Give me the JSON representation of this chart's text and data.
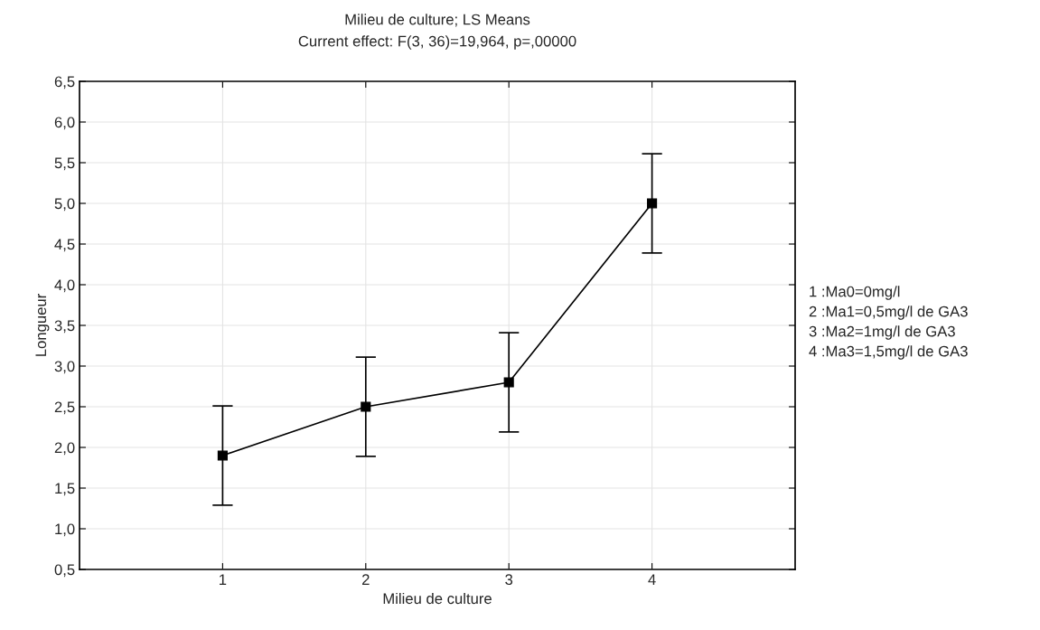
{
  "chart_data": {
    "type": "line",
    "title": "Milieu de culture; LS Means",
    "subtitle": "Current effect: F(3, 36)=19,964, p=,00000",
    "xlabel": "Milieu de culture",
    "ylabel": "Longueur",
    "categories": [
      "1",
      "2",
      "3",
      "4"
    ],
    "series": [
      {
        "color": "#000000",
        "values": [
          1.9,
          2.5,
          2.8,
          5.0
        ],
        "errors": [
          0.61,
          0.61,
          0.61,
          0.61
        ]
      }
    ],
    "ylim": [
      0.5,
      6.5
    ],
    "yticks": [
      {
        "value": 0.5,
        "label": "0,5"
      },
      {
        "value": 1.0,
        "label": "1,0"
      },
      {
        "value": 1.5,
        "label": "1,5"
      },
      {
        "value": 2.0,
        "label": "2,0"
      },
      {
        "value": 2.5,
        "label": "2,5"
      },
      {
        "value": 3.0,
        "label": "3,0"
      },
      {
        "value": 3.5,
        "label": "3,5"
      },
      {
        "value": 4.0,
        "label": "4,0"
      },
      {
        "value": 4.5,
        "label": "4,5"
      },
      {
        "value": 5.0,
        "label": "5,0"
      },
      {
        "value": 5.5,
        "label": "5,5"
      },
      {
        "value": 6.0,
        "label": "6,0"
      },
      {
        "value": 6.5,
        "label": "6,5"
      }
    ],
    "grid": true,
    "marker": "square",
    "line_style": "solid",
    "annotations": [
      "1 :Ma0=0mg/l",
      "2 :Ma1=0,5mg/l de GA3",
      "3 :Ma2=1mg/l de GA3",
      "4 :Ma3=1,5mg/l de GA3"
    ]
  }
}
